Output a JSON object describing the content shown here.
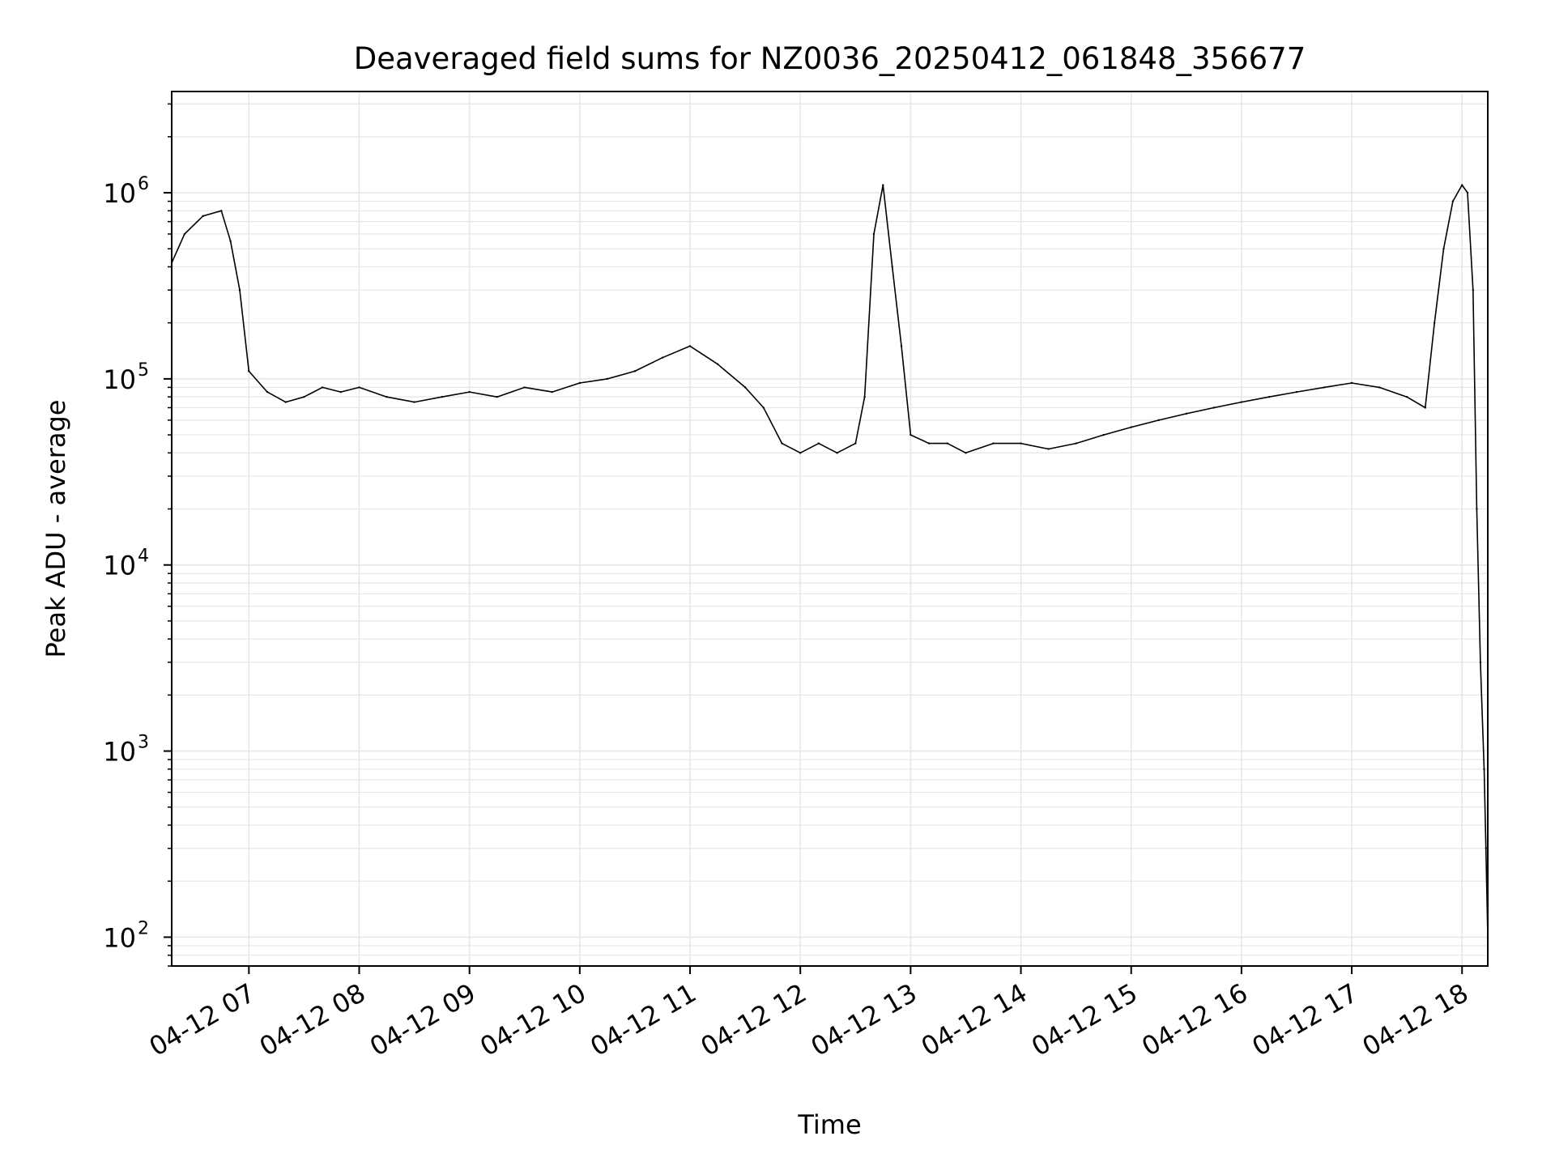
{
  "chart_data": {
    "type": "line",
    "title": "Deaveraged field sums for NZ0036_20250412_061848_356677",
    "xlabel": "Time",
    "ylabel": "Peak ADU - average",
    "x_scale": "time",
    "y_scale": "log",
    "xlim": [
      "2025-04-12 06:18",
      "2025-04-12 18:14"
    ],
    "ylim": [
      70,
      3500000
    ],
    "x_ticks": [
      "04-12 07",
      "04-12 08",
      "04-12 09",
      "04-12 10",
      "04-12 11",
      "04-12 12",
      "04-12 13",
      "04-12 14",
      "04-12 15",
      "04-12 16",
      "04-12 17",
      "04-12 18"
    ],
    "y_ticks": [
      {
        "value": 100,
        "base": "10",
        "exp": "2"
      },
      {
        "value": 1000,
        "base": "10",
        "exp": "3"
      },
      {
        "value": 10000,
        "base": "10",
        "exp": "4"
      },
      {
        "value": 100000,
        "base": "10",
        "exp": "5"
      },
      {
        "value": 1000000,
        "base": "10",
        "exp": "6"
      }
    ],
    "grid": true,
    "line_color": "#000000",
    "grid_color": "#e6e6e6",
    "series": [
      {
        "x": [
          "06:18",
          "06:25",
          "06:35",
          "06:45",
          "06:50",
          "06:55",
          "07:00",
          "07:10",
          "07:20",
          "07:30",
          "07:40",
          "07:50",
          "08:00",
          "08:15",
          "08:30",
          "08:45",
          "09:00",
          "09:15",
          "09:30",
          "09:45",
          "10:00",
          "10:15",
          "10:30",
          "10:45",
          "11:00",
          "11:15",
          "11:30",
          "11:40",
          "11:50",
          "12:00",
          "12:10",
          "12:20",
          "12:30",
          "12:35",
          "12:40",
          "12:45",
          "12:50",
          "12:55",
          "13:00",
          "13:10",
          "13:20",
          "13:30",
          "13:45",
          "14:00",
          "14:15",
          "14:30",
          "14:45",
          "15:00",
          "15:15",
          "15:30",
          "15:45",
          "16:00",
          "16:15",
          "16:30",
          "16:45",
          "17:00",
          "17:15",
          "17:30",
          "17:40",
          "17:45",
          "17:50",
          "17:55",
          "18:00",
          "18:03",
          "18:06",
          "18:08",
          "18:10",
          "18:12",
          "18:13",
          "18:14"
        ],
        "y": [
          420000,
          600000,
          750000,
          800000,
          550000,
          300000,
          110000,
          85000,
          75000,
          80000,
          90000,
          85000,
          90000,
          80000,
          75000,
          80000,
          85000,
          80000,
          90000,
          85000,
          95000,
          100000,
          110000,
          130000,
          150000,
          120000,
          90000,
          70000,
          45000,
          40000,
          45000,
          40000,
          45000,
          80000,
          600000,
          1100000,
          400000,
          150000,
          50000,
          45000,
          45000,
          40000,
          45000,
          45000,
          42000,
          45000,
          50000,
          55000,
          60000,
          65000,
          70000,
          75000,
          80000,
          85000,
          90000,
          95000,
          90000,
          80000,
          70000,
          200000,
          500000,
          900000,
          1100000,
          1000000,
          300000,
          20000,
          3000,
          800,
          300,
          100
        ]
      }
    ]
  }
}
